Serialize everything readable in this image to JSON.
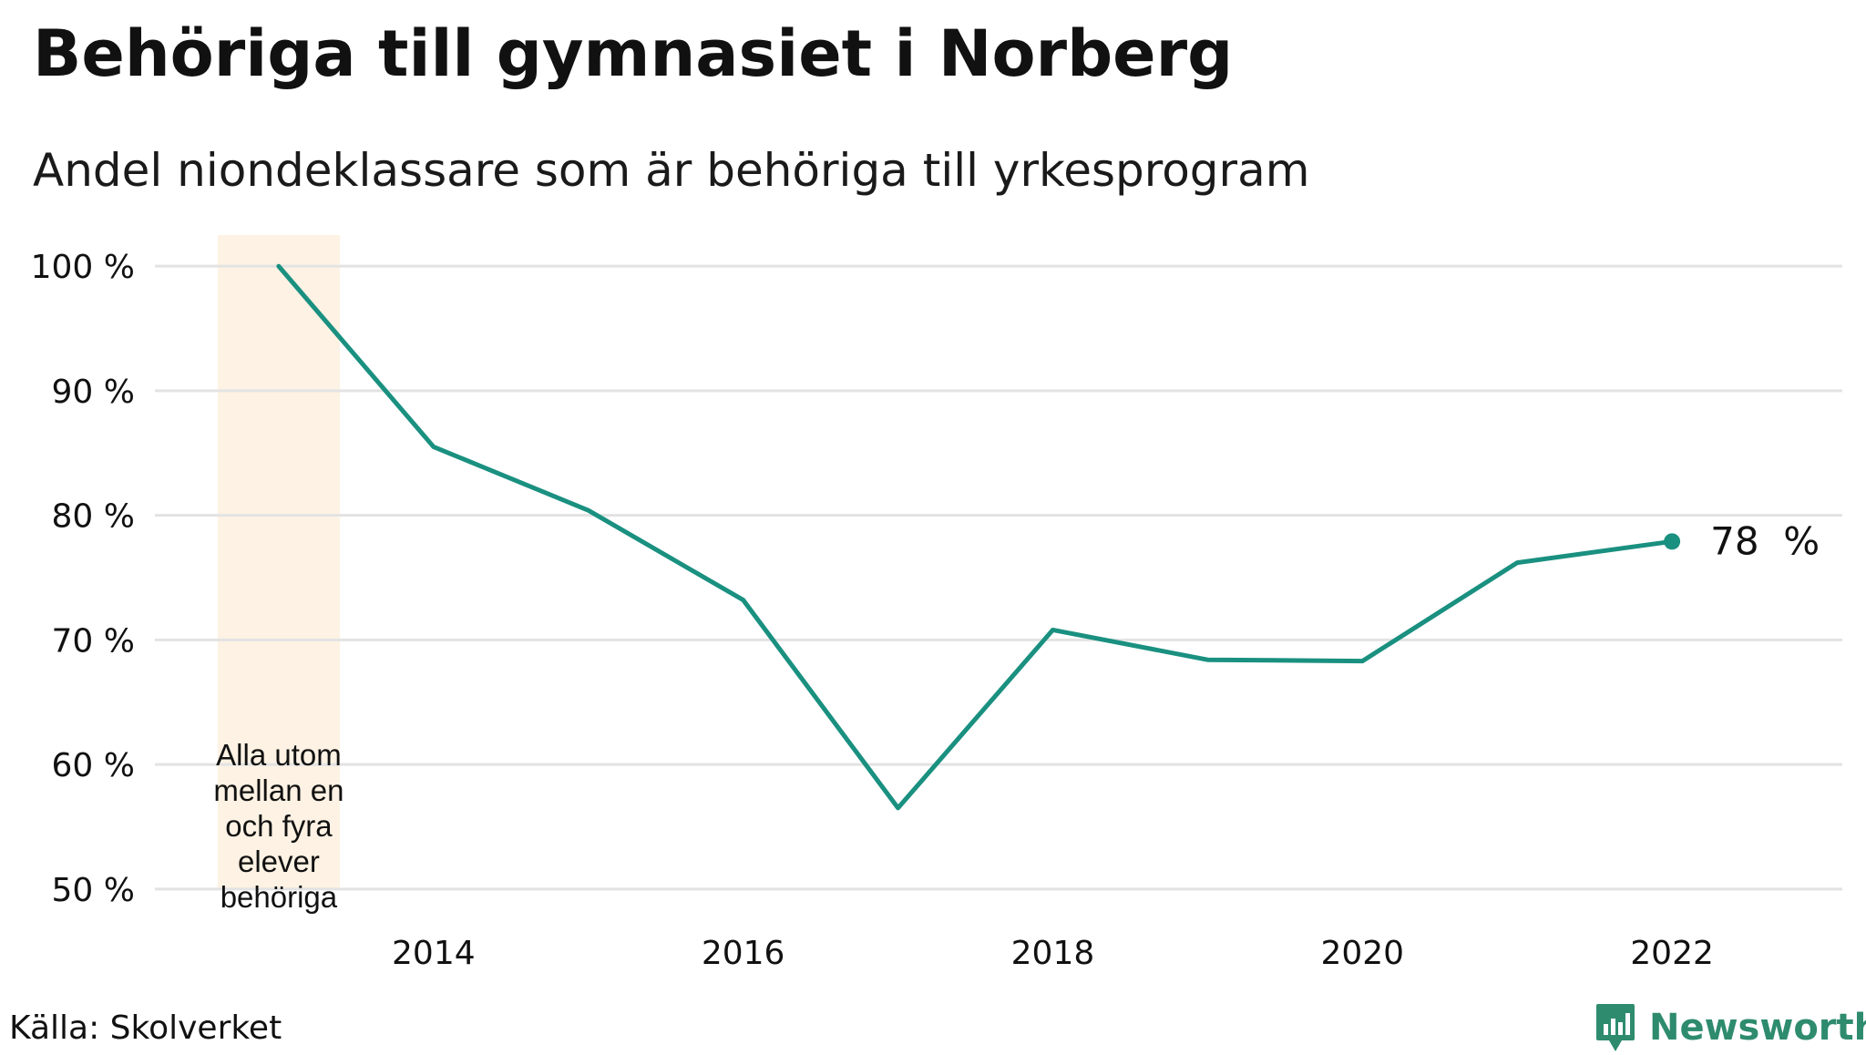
{
  "header": {
    "title": "Behöriga till gymnasiet i Norberg",
    "subtitle": "Andel niondeklassare som är behöriga till yrkesprogram"
  },
  "footer": {
    "source": "Källa: Skolverket",
    "brand": "Newsworthy"
  },
  "colors": {
    "line": "#1a9080",
    "highlight_band": "#fdf2e3",
    "grid": "#e3e3e3",
    "brand": "#2e8b6e"
  },
  "chart_data": {
    "type": "line",
    "title": "Behöriga till gymnasiet i Norberg",
    "subtitle": "Andel niondeklassare som är behöriga till yrkesprogram",
    "x": [
      2013,
      2014,
      2015,
      2016,
      2017,
      2018,
      2019,
      2020,
      2021,
      2022
    ],
    "series": [
      {
        "values": [
          100,
          85.5,
          80.4,
          73.2,
          56.5,
          70.8,
          68.4,
          68.3,
          76.2,
          77.9
        ]
      }
    ],
    "x_ticks": [
      2014,
      2016,
      2018,
      2020,
      2022
    ],
    "y_ticks": [
      50,
      60,
      70,
      80,
      90,
      100
    ],
    "y_tick_labels": [
      "50 %",
      "60 %",
      "70 %",
      "80 %",
      "90 %",
      "100 %"
    ],
    "xlim": [
      2012.2,
      2023.1
    ],
    "ylim": [
      47.5,
      102.5
    ],
    "grid": true,
    "last_value_label": "78  %",
    "highlight": {
      "x": 2013,
      "note_lines": [
        "Alla utom",
        "mellan en",
        "och fyra",
        "elever",
        "behöriga"
      ]
    }
  }
}
